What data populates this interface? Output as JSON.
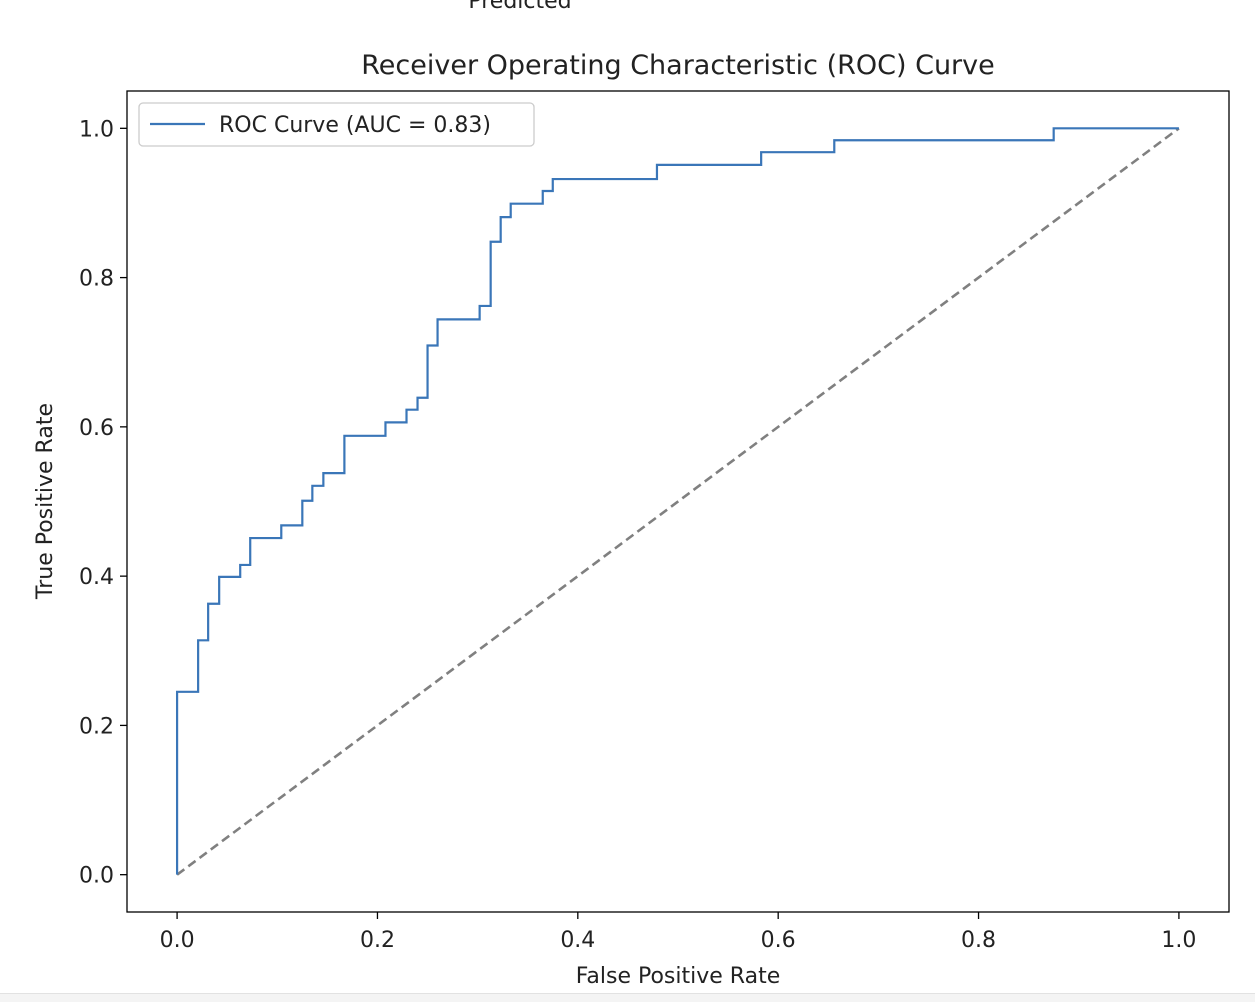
{
  "top_cut_label": "Predicted",
  "chart_data": {
    "type": "line",
    "title": "Receiver Operating Characteristic (ROC) Curve",
    "xlabel": "False Positive Rate",
    "ylabel": "True Positive Rate",
    "xlim": [
      -0.05,
      1.05
    ],
    "ylim": [
      -0.05,
      1.05
    ],
    "x_ticks": [
      0.0,
      0.2,
      0.4,
      0.6,
      0.8,
      1.0
    ],
    "x_tick_labels": [
      "0.0",
      "0.2",
      "0.4",
      "0.6",
      "0.8",
      "1.0"
    ],
    "y_ticks": [
      0.0,
      0.2,
      0.4,
      0.6,
      0.8,
      1.0
    ],
    "y_tick_labels": [
      "0.0",
      "0.2",
      "0.4",
      "0.6",
      "0.8",
      "1.0"
    ],
    "grid": false,
    "legend_position": "top-left",
    "series": [
      {
        "name": "ROC Curve (AUC = 0.83)",
        "color": "#3a76b8",
        "style": "solid",
        "x": [
          0,
          0,
          0.021,
          0.021,
          0.031,
          0.031,
          0.042,
          0.042,
          0.063,
          0.063,
          0.073,
          0.073,
          0.104,
          0.104,
          0.125,
          0.125,
          0.135,
          0.135,
          0.146,
          0.146,
          0.167,
          0.167,
          0.208,
          0.208,
          0.229,
          0.229,
          0.24,
          0.24,
          0.25,
          0.25,
          0.26,
          0.26,
          0.302,
          0.302,
          0.313,
          0.313,
          0.323,
          0.323,
          0.333,
          0.333,
          0.365,
          0.365,
          0.375,
          0.375,
          0.479,
          0.479,
          0.583,
          0.583,
          0.656,
          0.656,
          0.875,
          0.875,
          1.0
        ],
        "y": [
          0,
          0.245,
          0.245,
          0.314,
          0.314,
          0.363,
          0.363,
          0.399,
          0.399,
          0.415,
          0.415,
          0.451,
          0.451,
          0.468,
          0.468,
          0.501,
          0.501,
          0.521,
          0.521,
          0.538,
          0.538,
          0.588,
          0.588,
          0.606,
          0.606,
          0.623,
          0.623,
          0.639,
          0.639,
          0.709,
          0.709,
          0.744,
          0.744,
          0.762,
          0.762,
          0.848,
          0.848,
          0.881,
          0.881,
          0.899,
          0.899,
          0.916,
          0.916,
          0.932,
          0.932,
          0.951,
          0.951,
          0.968,
          0.968,
          0.984,
          0.984,
          1.0,
          1.0
        ]
      },
      {
        "name": "",
        "color": "#808080",
        "style": "dashed",
        "x": [
          0,
          1
        ],
        "y": [
          0,
          1
        ]
      }
    ]
  }
}
